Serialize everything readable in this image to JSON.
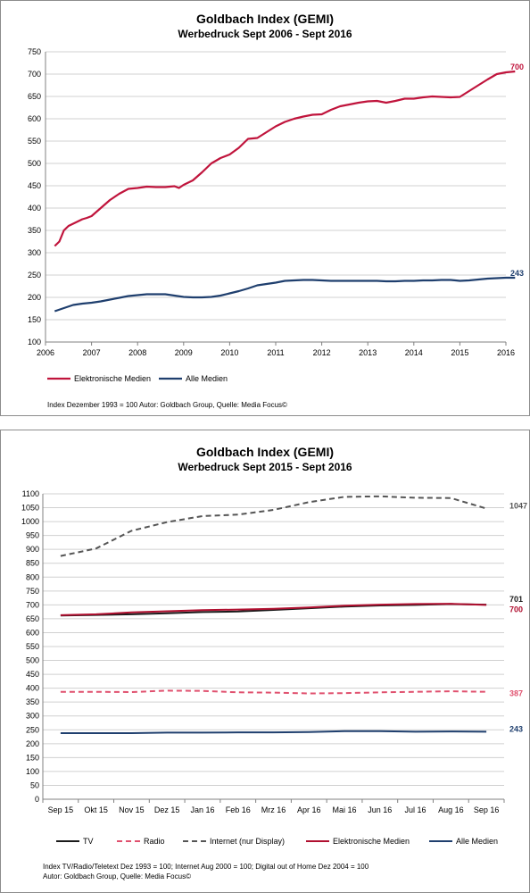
{
  "chart_data": [
    {
      "type": "line",
      "title": "Goldbach Index (GEMI)",
      "subtitle": "Werbedruck Sept 2006 - Sept 2016",
      "xlim": [
        2006,
        2016
      ],
      "ylim": [
        100,
        750
      ],
      "x_ticks": [
        "2006",
        "2007",
        "2008",
        "2009",
        "2010",
        "2011",
        "2012",
        "2013",
        "2014",
        "2015",
        "2016"
      ],
      "y_ticks": [
        "100",
        "150",
        "200",
        "250",
        "300",
        "350",
        "400",
        "450",
        "500",
        "550",
        "600",
        "650",
        "700",
        "750"
      ],
      "grid": true,
      "legend": "bottom",
      "series": [
        {
          "name": "Elektronische Medien",
          "color": "#c0143c",
          "end_label": "700",
          "x": [
            2006.2,
            2006.3,
            2006.4,
            2006.5,
            2006.6,
            2006.8,
            2006.9,
            2007.0,
            2007.2,
            2007.4,
            2007.6,
            2007.8,
            2007.9,
            2008.0,
            2008.2,
            2008.4,
            2008.6,
            2008.8,
            2008.9,
            2009.0,
            2009.2,
            2009.4,
            2009.6,
            2009.8,
            2010.0,
            2010.2,
            2010.4,
            2010.6,
            2010.8,
            2011.0,
            2011.2,
            2011.4,
            2011.6,
            2011.8,
            2012.0,
            2012.2,
            2012.4,
            2012.6,
            2012.8,
            2013.0,
            2013.2,
            2013.4,
            2013.6,
            2013.8,
            2014.0,
            2014.2,
            2014.4,
            2014.6,
            2014.8,
            2015.0,
            2015.2,
            2015.4,
            2015.6,
            2015.8,
            2016.0,
            2016.2
          ],
          "values": [
            315,
            325,
            350,
            360,
            365,
            375,
            378,
            382,
            400,
            418,
            432,
            443,
            444,
            445,
            448,
            447,
            447,
            449,
            445,
            452,
            462,
            480,
            500,
            512,
            520,
            535,
            555,
            557,
            570,
            583,
            593,
            600,
            605,
            609,
            610,
            620,
            628,
            632,
            636,
            639,
            640,
            636,
            640,
            645,
            645,
            648,
            650,
            649,
            648,
            649,
            662,
            675,
            688,
            700,
            704,
            706
          ]
        },
        {
          "name": "Alle Medien",
          "color": "#1f3f6e",
          "end_label": "243",
          "x": [
            2006.2,
            2006.4,
            2006.6,
            2006.8,
            2007.0,
            2007.2,
            2007.4,
            2007.6,
            2007.8,
            2008.0,
            2008.2,
            2008.4,
            2008.6,
            2008.8,
            2009.0,
            2009.2,
            2009.4,
            2009.6,
            2009.8,
            2010.0,
            2010.2,
            2010.4,
            2010.6,
            2010.8,
            2011.0,
            2011.2,
            2011.4,
            2011.6,
            2011.8,
            2012.0,
            2012.2,
            2012.4,
            2012.6,
            2012.8,
            2013.0,
            2013.2,
            2013.4,
            2013.6,
            2013.8,
            2014.0,
            2014.2,
            2014.4,
            2014.6,
            2014.8,
            2015.0,
            2015.2,
            2015.4,
            2015.6,
            2015.8,
            2016.0,
            2016.2
          ],
          "values": [
            169,
            176,
            183,
            186,
            188,
            191,
            195,
            199,
            203,
            205,
            207,
            207,
            207,
            204,
            201,
            200,
            200,
            201,
            204,
            209,
            214,
            220,
            227,
            230,
            233,
            237,
            238,
            239,
            239,
            238,
            237,
            237,
            237,
            237,
            237,
            237,
            236,
            236,
            237,
            237,
            238,
            238,
            239,
            239,
            237,
            238,
            240,
            242,
            243,
            244,
            244
          ]
        }
      ],
      "source_note": "Index Dezember 1993 = 100   Autor: Goldbach Group, Quelle: Media Focus©"
    },
    {
      "type": "line",
      "title": "Goldbach Index (GEMI)",
      "subtitle": "Werbedruck Sept 2015 - Sept 2016",
      "categories": [
        "Sep 15",
        "Okt 15",
        "Nov 15",
        "Dez 15",
        "Jan 16",
        "Feb 16",
        "Mrz 16",
        "Apr 16",
        "Mai 16",
        "Jun 16",
        "Jul 16",
        "Aug 16",
        "Sep 16"
      ],
      "ylim": [
        0,
        1100
      ],
      "y_ticks": [
        "0",
        "50",
        "100",
        "150",
        "200",
        "250",
        "300",
        "350",
        "400",
        "450",
        "500",
        "550",
        "600",
        "650",
        "700",
        "750",
        "800",
        "850",
        "900",
        "950",
        "1000",
        "1050",
        "1100"
      ],
      "grid": true,
      "legend": "bottom",
      "series": [
        {
          "name": "TV",
          "color": "#1a1a1a",
          "dash": "solid",
          "end_label": "701",
          "values": [
            662,
            664,
            666,
            670,
            674,
            676,
            682,
            688,
            694,
            698,
            700,
            703,
            701
          ]
        },
        {
          "name": "Radio",
          "color": "#e0506e",
          "dash": "dashed",
          "end_label": "387",
          "values": [
            387,
            387,
            386,
            391,
            390,
            385,
            384,
            381,
            382,
            385,
            387,
            389,
            387
          ]
        },
        {
          "name": "Internet (nur Display)",
          "color": "#555555",
          "dash": "dashed",
          "end_label": "1047",
          "values": [
            876,
            903,
            967,
            998,
            1020,
            1025,
            1042,
            1070,
            1089,
            1091,
            1086,
            1085,
            1047
          ]
        },
        {
          "name": "Elektronische Medien",
          "color": "#b01030",
          "dash": "solid",
          "end_label": "700",
          "values": [
            663,
            666,
            673,
            677,
            681,
            683,
            686,
            691,
            697,
            701,
            703,
            704,
            700
          ]
        },
        {
          "name": "Alle Medien",
          "color": "#1f3f6e",
          "dash": "solid",
          "end_label": "243",
          "values": [
            238,
            238,
            238,
            240,
            240,
            241,
            241,
            242,
            245,
            245,
            243,
            244,
            243
          ]
        }
      ],
      "source_note_lines": [
        "Index TV/Radio/Teletext Dez 1993 = 100; Internet Aug 2000 = 100; Digital out of Home Dez 2004 = 100",
        "Autor: Goldbach Group, Quelle: Media Focus©"
      ]
    }
  ]
}
